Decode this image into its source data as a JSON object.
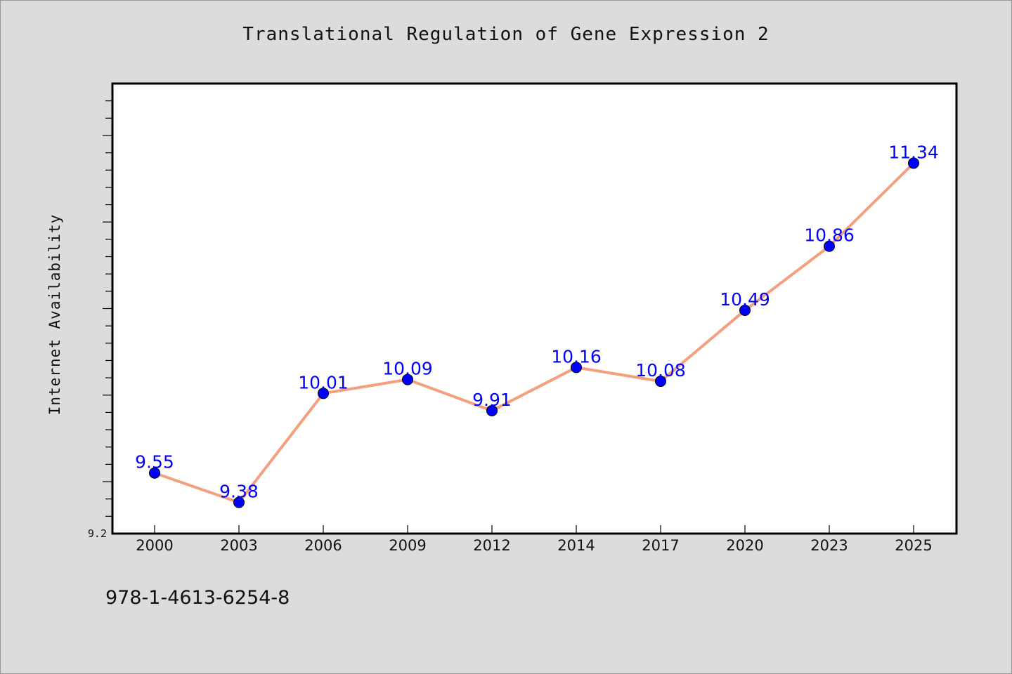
{
  "chart_data": {
    "type": "line",
    "title": "Translational Regulation of Gene Expression 2",
    "xlabel": "",
    "ylabel": "Internet Availability",
    "categories": [
      "2000",
      "2003",
      "2006",
      "2009",
      "2012",
      "2014",
      "2017",
      "2020",
      "2023",
      "2025"
    ],
    "series": [
      {
        "values": [
          9.55,
          9.38,
          10.01,
          10.09,
          9.91,
          10.16,
          10.08,
          10.49,
          10.86,
          11.34
        ],
        "labels": [
          "9.55",
          "9.38",
          "10.01",
          "10.09",
          "9.91",
          "10.16",
          "10.08",
          "10.49",
          "10.86",
          "11.34"
        ]
      }
    ],
    "ylim": [
      9.2,
      11.8
    ],
    "y_tick_labels": [
      "9.2"
    ],
    "grid": false,
    "legend": "none",
    "colors": {
      "line": "#f4a07e",
      "marker": "#0000ff",
      "data_label": "#0000ff",
      "background": "#dcdcdc",
      "plot_area": "#ffffff"
    }
  },
  "footer": {
    "isbn": "978-1-4613-6254-8"
  }
}
